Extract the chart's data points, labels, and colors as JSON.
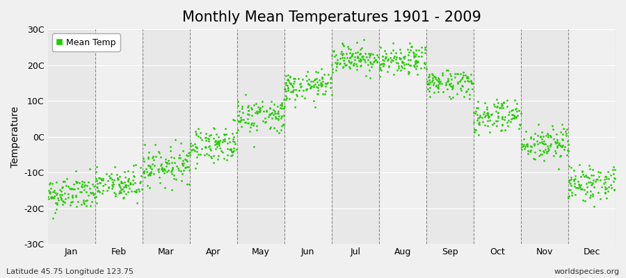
{
  "title": "Monthly Mean Temperatures 1901 - 2009",
  "ylabel": "Temperature",
  "ylim": [
    -30,
    30
  ],
  "ytick_labels": [
    "-30C",
    "-20C",
    "-10C",
    "0C",
    "10C",
    "20C",
    "30C"
  ],
  "ytick_values": [
    -30,
    -20,
    -10,
    0,
    10,
    20,
    30
  ],
  "month_labels": [
    "Jan",
    "Feb",
    "Mar",
    "Apr",
    "May",
    "Jun",
    "Jul",
    "Aug",
    "Sep",
    "Oct",
    "Nov",
    "Dec"
  ],
  "n_years": 109,
  "mean_temps": [
    -16.0,
    -13.5,
    -8.0,
    -2.0,
    6.0,
    14.0,
    22.0,
    21.0,
    15.0,
    6.0,
    -2.0,
    -13.0
  ],
  "temp_spread": [
    2.5,
    2.5,
    2.5,
    2.5,
    2.5,
    2.0,
    2.0,
    2.0,
    2.0,
    2.5,
    2.5,
    2.5
  ],
  "dot_color": "#22cc00",
  "dot_size": 4,
  "background_color": "#f0f0f0",
  "band_color_even": "#e8e8e8",
  "band_color_odd": "#f0f0f0",
  "grid_color": "#ffffff",
  "vline_color": "#888888",
  "title_fontsize": 15,
  "axis_label_fontsize": 10,
  "tick_fontsize": 9,
  "footer_left": "Latitude 45.75 Longitude 123.75",
  "footer_right": "worldspecies.org",
  "legend_label": "Mean Temp"
}
